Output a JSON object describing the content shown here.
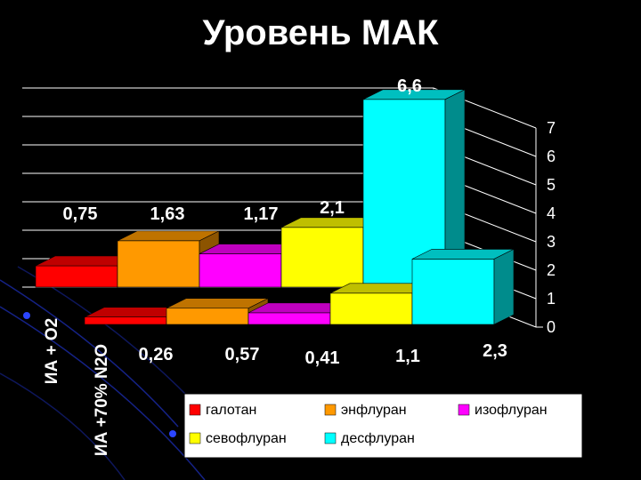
{
  "slide": {
    "title": "Уровень МАК"
  },
  "colors": {
    "background": "#000000",
    "grid": "#ffffff",
    "text": "#ffffff",
    "legend_bg": "#ffffff",
    "legend_text": "#000000"
  },
  "chart_data": {
    "type": "bar",
    "subtype": "3d-clustered-depth",
    "title": "",
    "xlabel": "",
    "ylabel": "",
    "ylim": [
      0,
      7
    ],
    "yticks": [
      "0",
      "1",
      "2",
      "3",
      "4",
      "5",
      "6",
      "7"
    ],
    "grid": true,
    "legend": "bottom",
    "categories": [
      "ИА + O2",
      "ИА +70% N2O"
    ],
    "series": [
      {
        "name": "галотан",
        "color": "#ff0000",
        "values": [
          0.75,
          0.26
        ],
        "labels": [
          "0,75",
          "0,26"
        ]
      },
      {
        "name": "энфлуран",
        "color": "#ff9900",
        "values": [
          1.63,
          0.57
        ],
        "labels": [
          "1,63",
          "0,57"
        ]
      },
      {
        "name": "изофлуран",
        "color": "#ff00ff",
        "values": [
          1.17,
          0.41
        ],
        "labels": [
          "1,17",
          "0,41"
        ]
      },
      {
        "name": "севофлуран",
        "color": "#ffff00",
        "values": [
          2.1,
          1.1
        ],
        "labels": [
          "2,1",
          "1,1"
        ]
      },
      {
        "name": "десфлуран",
        "color": "#00ffff",
        "values": [
          6.6,
          2.3
        ],
        "labels": [
          "6,6",
          "2,3"
        ]
      }
    ]
  }
}
